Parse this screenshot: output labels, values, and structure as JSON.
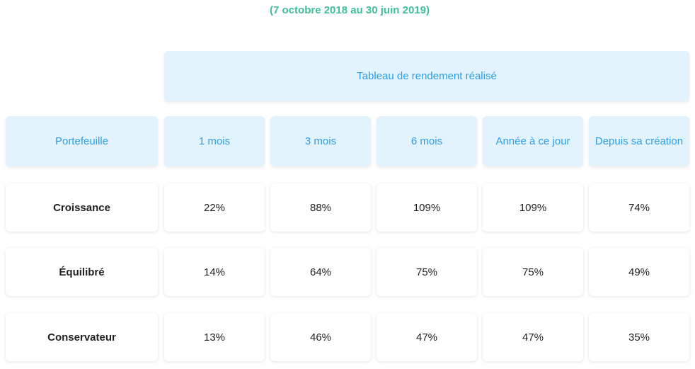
{
  "subtitle": "(7 octobre 2018 au 30 juin 2019)",
  "table": {
    "banner": "Tableau de rendement réalisé",
    "columns": [
      "Portefeuille",
      "1 mois",
      "3 mois",
      "6 mois",
      "Année à ce jour",
      "Depuis sa création"
    ],
    "rows": [
      {
        "name": "Croissance",
        "values": [
          "22%",
          "88%",
          "109%",
          "109%",
          "74%"
        ]
      },
      {
        "name": "Équilibré",
        "values": [
          "14%",
          "64%",
          "75%",
          "75%",
          "49%"
        ]
      },
      {
        "name": "Conservateur",
        "values": [
          "13%",
          "46%",
          "47%",
          "47%",
          "35%"
        ]
      }
    ]
  },
  "colors": {
    "accent": "#2d9ee6",
    "subtitle": "#3fbf9a",
    "header_bg": "#e3f3fd"
  }
}
